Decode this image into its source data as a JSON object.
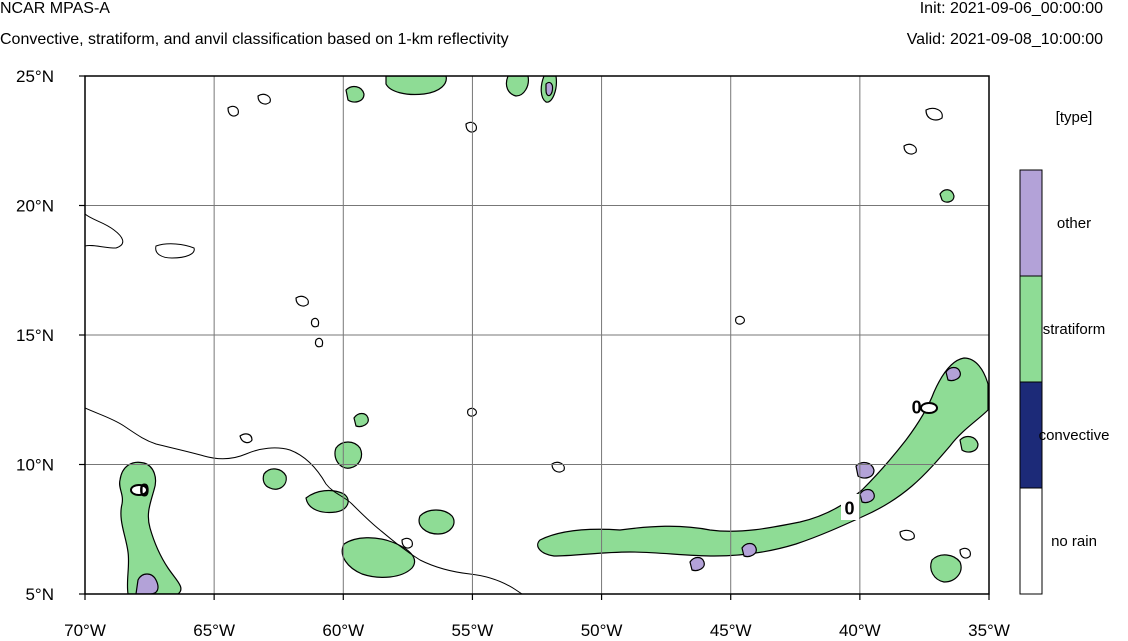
{
  "header": {
    "model": "NCAR MPAS-A",
    "subtitle": "Convective, stratiform, and anvil classification based on 1-km reflectivity",
    "init": "Init: 2021-09-06_00:00:00",
    "valid": "Valid: 2021-09-08_10:00:00"
  },
  "map": {
    "lon_range": [
      -70,
      -35
    ],
    "lat_range": [
      5,
      25
    ],
    "grid": true,
    "lon_ticks": [
      {
        "value": -70,
        "label": "70°W"
      },
      {
        "value": -65,
        "label": "65°W"
      },
      {
        "value": -60,
        "label": "60°W"
      },
      {
        "value": -55,
        "label": "55°W"
      },
      {
        "value": -50,
        "label": "50°W"
      },
      {
        "value": -45,
        "label": "45°W"
      },
      {
        "value": -40,
        "label": "40°W"
      },
      {
        "value": -35,
        "label": "35°W"
      }
    ],
    "lat_ticks": [
      {
        "value": 25,
        "label": "25°N"
      },
      {
        "value": 20,
        "label": "20°N"
      },
      {
        "value": 15,
        "label": "15°N"
      },
      {
        "value": 10,
        "label": "10°N"
      },
      {
        "value": 5,
        "label": "5°N"
      }
    ],
    "contour_labels": [
      {
        "text": "0",
        "lon": -67.7,
        "lat": 9.0
      },
      {
        "text": "0",
        "lon": -40.4,
        "lat": 8.3
      },
      {
        "text": "0",
        "lon": -37.8,
        "lat": 12.2
      }
    ]
  },
  "legend": {
    "title": "[type]",
    "entries": [
      {
        "label": "other",
        "color": "#b3a2d8"
      },
      {
        "label": "stratiform",
        "color": "#8edc95"
      },
      {
        "label": "convective",
        "color": "#1c2a78"
      },
      {
        "label": "no rain",
        "color": "#ffffff"
      }
    ]
  }
}
